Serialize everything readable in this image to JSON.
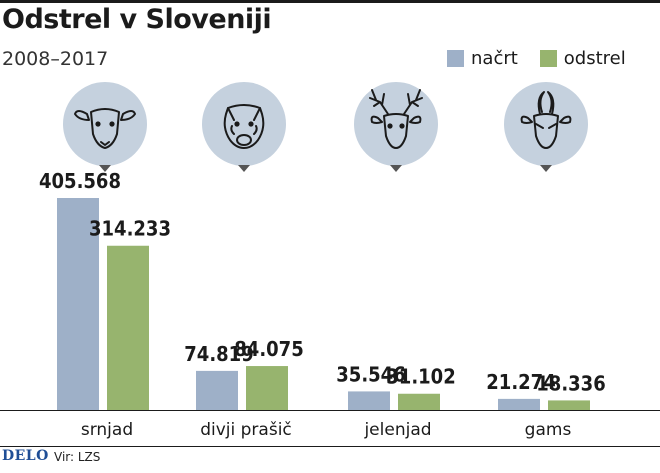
{
  "header": {
    "title": "Odstrel v Sloveniji",
    "subtitle": "2008–2017"
  },
  "legend": [
    {
      "label": "načrt",
      "color": "#9eb0c8"
    },
    {
      "label": "odstrel",
      "color": "#97b46e"
    }
  ],
  "footer": {
    "logo": "DELO",
    "source": "Vir: LZS"
  },
  "chart_data": {
    "type": "bar",
    "title": "Odstrel v Sloveniji",
    "subtitle": "2008–2017",
    "categories": [
      "srnjad",
      "divji prašič",
      "jelenjad",
      "gams"
    ],
    "category_icons": [
      "roe-deer-icon",
      "wild-boar-icon",
      "red-deer-icon",
      "chamois-icon"
    ],
    "series": [
      {
        "name": "načrt",
        "color": "#9eb0c8",
        "values": [
          405568,
          74819,
          35546,
          21274
        ],
        "labels": [
          "405.568",
          "74.819",
          "35.546",
          "21.274"
        ]
      },
      {
        "name": "odstrel",
        "color": "#97b46e",
        "values": [
          314233,
          84075,
          31102,
          18336
        ],
        "labels": [
          "314.233",
          "84.075",
          "31.102",
          "18.336"
        ]
      }
    ],
    "ylim": [
      0,
      405568
    ],
    "grid": false,
    "legend_position": "top-right"
  }
}
